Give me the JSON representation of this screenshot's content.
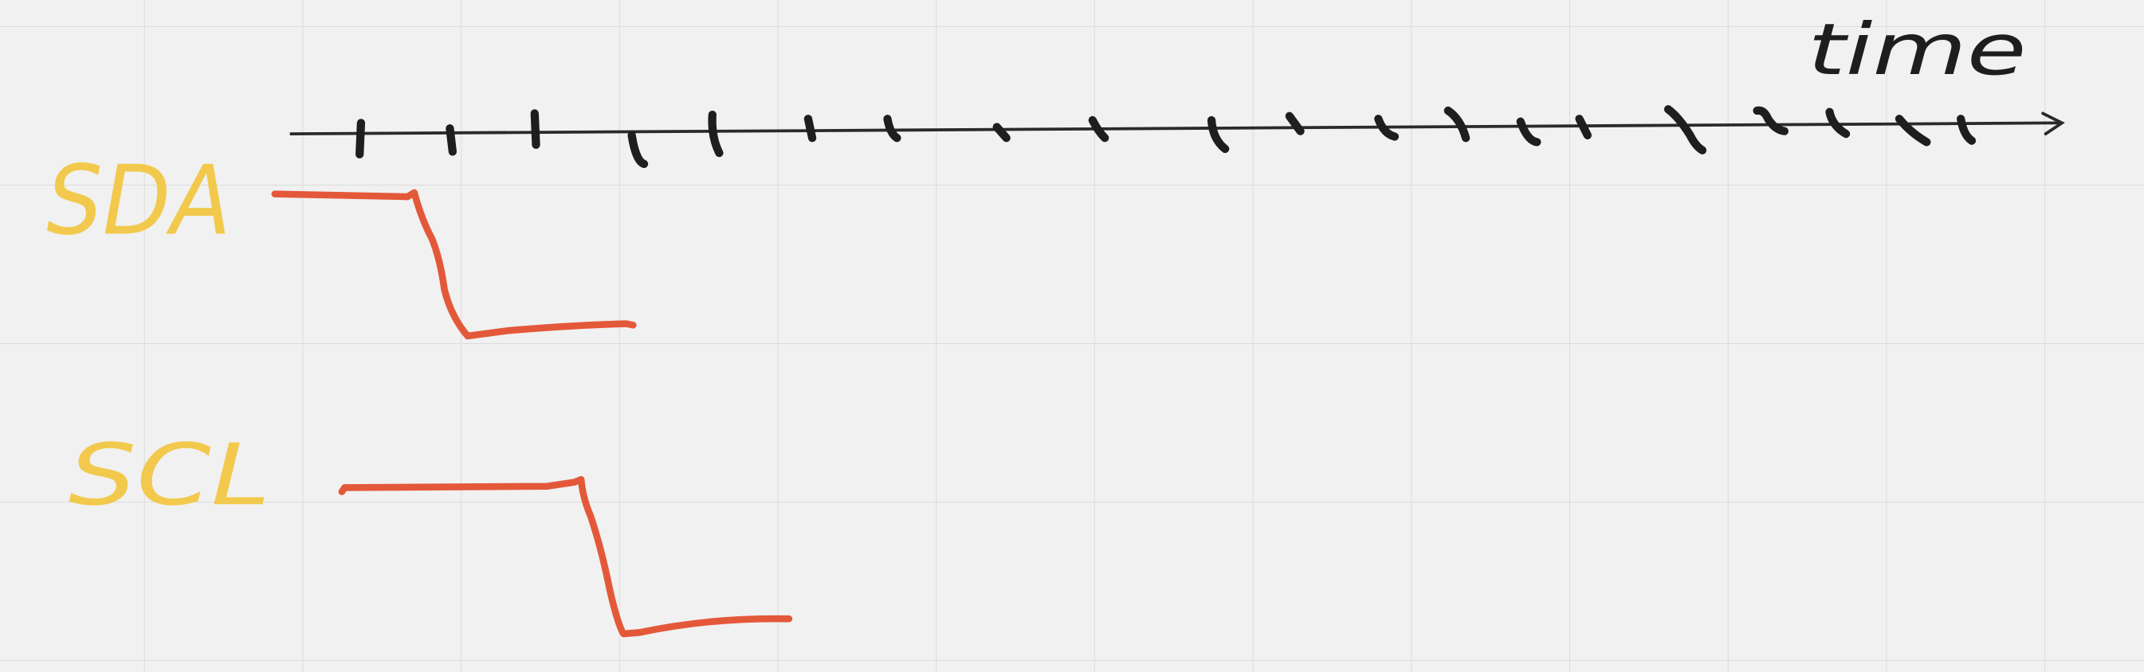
{
  "labels": {
    "sda": "SDA",
    "scl": "SCL",
    "axis": "time"
  }
}
